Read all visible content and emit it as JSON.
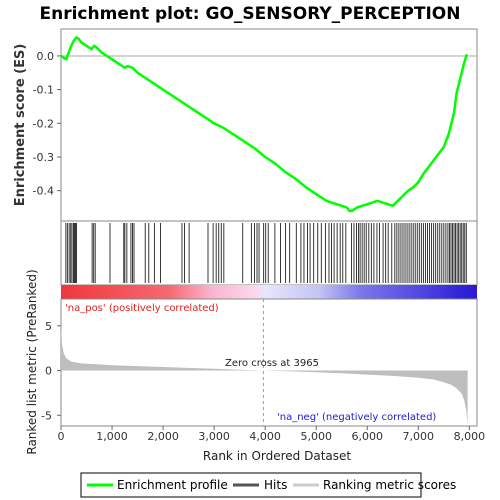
{
  "chart_data": {
    "type": "line",
    "title": "Enrichment plot: GO_SENSORY_PERCEPTION",
    "top_panel": {
      "ylabel": "Enrichment score (ES)",
      "ylim": [
        -0.49,
        0.08
      ],
      "yticks": [
        0.0,
        -0.1,
        -0.2,
        -0.3,
        -0.4
      ],
      "ytick_labels": [
        "0.0",
        "-0.1",
        "-0.2",
        "-0.3",
        "-0.4"
      ],
      "series": [
        {
          "name": "Enrichment profile",
          "color": "#00ff00",
          "x": [
            0,
            100,
            150,
            200,
            250,
            300,
            350,
            400,
            500,
            600,
            650,
            700,
            800,
            1000,
            1200,
            1250,
            1300,
            1400,
            1500,
            1700,
            1900,
            2100,
            2400,
            2600,
            2800,
            3000,
            3200,
            3400,
            3600,
            3800,
            4000,
            4200,
            4400,
            4600,
            4800,
            5000,
            5200,
            5300,
            5400,
            5500,
            5600,
            5650,
            5700,
            5800,
            5900,
            6000,
            6100,
            6200,
            6300,
            6400,
            6500,
            6600,
            6700,
            6800,
            6900,
            7000,
            7100,
            7200,
            7300,
            7400,
            7500,
            7600,
            7700,
            7750,
            7800,
            7850,
            7900,
            7950
          ],
          "y": [
            0.0,
            -0.01,
            0.01,
            0.03,
            0.045,
            0.055,
            0.05,
            0.04,
            0.03,
            0.02,
            0.03,
            0.025,
            0.01,
            -0.01,
            -0.03,
            -0.035,
            -0.03,
            -0.035,
            -0.05,
            -0.07,
            -0.09,
            -0.11,
            -0.14,
            -0.16,
            -0.18,
            -0.2,
            -0.215,
            -0.235,
            -0.255,
            -0.275,
            -0.3,
            -0.32,
            -0.345,
            -0.365,
            -0.39,
            -0.41,
            -0.43,
            -0.435,
            -0.44,
            -0.445,
            -0.45,
            -0.46,
            -0.46,
            -0.45,
            -0.445,
            -0.44,
            -0.435,
            -0.43,
            -0.435,
            -0.44,
            -0.445,
            -0.43,
            -0.415,
            -0.4,
            -0.39,
            -0.375,
            -0.35,
            -0.33,
            -0.31,
            -0.29,
            -0.27,
            -0.23,
            -0.17,
            -0.11,
            -0.08,
            -0.05,
            -0.02,
            0.005
          ]
        }
      ]
    },
    "hits_panel": {
      "legend_name": "Hits",
      "hit_ranks": [
        95,
        125,
        160,
        190,
        215,
        245,
        265,
        285,
        305,
        610,
        640,
        670,
        960,
        1230,
        1250,
        1290,
        1370,
        1400,
        1430,
        1650,
        1720,
        1830,
        1950,
        2370,
        2420,
        2510,
        2880,
        2980,
        3040,
        3090,
        3140,
        3190,
        3560,
        3730,
        3790,
        3840,
        3880,
        3970,
        4010,
        4060,
        4190,
        4300,
        4400,
        4480,
        4610,
        4700,
        4760,
        4830,
        4880,
        4950,
        5030,
        5100,
        5180,
        5250,
        5300,
        5350,
        5410,
        5470,
        5520,
        5580,
        5690,
        5740,
        5790,
        5830,
        5860,
        5900,
        5940,
        5980,
        6030,
        6080,
        6130,
        6190,
        6240,
        6310,
        6360,
        6410,
        6480,
        6540,
        6580,
        6620,
        6660,
        6700,
        6740,
        6780,
        6820,
        6860,
        6900,
        6940,
        6980,
        7020,
        7060,
        7100,
        7140,
        7180,
        7220,
        7260,
        7300,
        7340,
        7380,
        7420,
        7460,
        7500,
        7540,
        7580,
        7610,
        7640,
        7670,
        7700,
        7730,
        7760,
        7790,
        7820,
        7850,
        7880,
        7910,
        7940
      ]
    },
    "ranked_panel": {
      "ylabel": "Ranked list metric (PreRanked)",
      "xlabel": "Rank in Ordered Dataset",
      "legend_name": "Ranking metric scores",
      "ylim": [
        -6.2,
        8
      ],
      "yticks": [
        5,
        0,
        -5
      ],
      "ytick_labels": [
        "5",
        "0",
        "-5"
      ],
      "xlim": [
        0,
        8150
      ],
      "xticks": [
        0,
        1000,
        2000,
        3000,
        4000,
        5000,
        6000,
        7000,
        8000
      ],
      "xtick_labels": [
        "0",
        "1,000",
        "2,000",
        "3,000",
        "4,000",
        "5,000",
        "6,000",
        "7,000",
        "8,000"
      ],
      "metric_x": [
        0,
        20,
        50,
        100,
        200,
        400,
        700,
        1000,
        1500,
        2000,
        2500,
        3000,
        3500,
        3965,
        4500,
        5000,
        5500,
        6000,
        6500,
        7000,
        7300,
        7500,
        7650,
        7750,
        7850,
        7900,
        7940,
        7965
      ],
      "metric_y": [
        5.0,
        3.0,
        2.0,
        1.4,
        1.0,
        0.8,
        0.7,
        0.6,
        0.5,
        0.4,
        0.3,
        0.2,
        0.1,
        0.0,
        -0.1,
        -0.2,
        -0.3,
        -0.45,
        -0.6,
        -0.8,
        -1.0,
        -1.3,
        -1.6,
        -2.0,
        -2.6,
        -3.3,
        -4.5,
        -6.0
      ],
      "zero_cross_label": "Zero cross at 3965",
      "zero_cross": 3965,
      "pos_label": "'na_pos' (positively correlated)",
      "neg_label": "'na_neg' (negatively correlated)"
    },
    "colors": {
      "profile": "#00ff00",
      "pos_band": "#f0363d",
      "neg_band": "#3a30e6",
      "pos_text": "#e02020",
      "neg_text": "#2020d0",
      "metric_fill": "#bebebe"
    },
    "legend": [
      "Enrichment profile",
      "Hits",
      "Ranking metric scores"
    ]
  }
}
